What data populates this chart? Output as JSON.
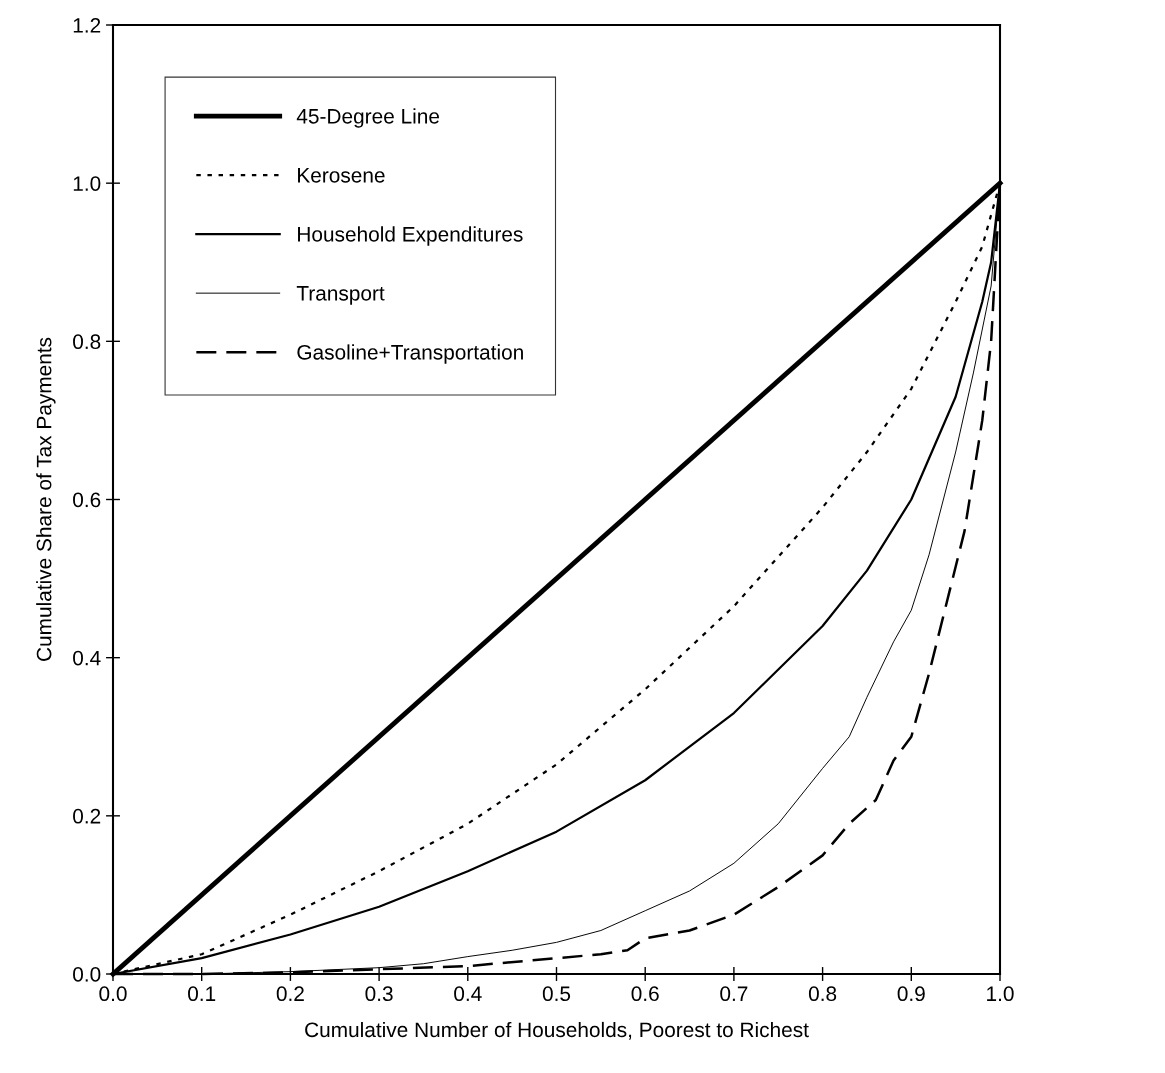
{
  "chart_data": {
    "type": "line",
    "xlabel": "Cumulative Number of Households, Poorest to Richest",
    "ylabel": "Cumulative Share of Tax Payments",
    "xlim": [
      0,
      1
    ],
    "ylim": [
      0,
      1.2
    ],
    "xticks": [
      {
        "value": 0,
        "label": "0.0"
      },
      0.1,
      0.2,
      0.3,
      0.4,
      0.5,
      0.6,
      0.7,
      0.8,
      0.9,
      {
        "value": 1,
        "label": "1.0"
      }
    ],
    "yticks": [
      {
        "value": 0,
        "label": "0.0"
      },
      0.2,
      0.4,
      0.6,
      0.8,
      {
        "value": 1,
        "label": "1.0"
      },
      1.2
    ],
    "grid": false,
    "legend": "top left",
    "series": [
      {
        "name": "45-Degree Line",
        "color": "#000000",
        "line_style": "solid",
        "x": [
          0,
          1
        ],
        "values": [
          0,
          1
        ]
      },
      {
        "name": "Kerosene",
        "color": "#000000",
        "line_style": "dotted",
        "x": [
          0,
          0.1,
          0.2,
          0.3,
          0.4,
          0.5,
          0.6,
          0.7,
          0.8,
          0.85,
          0.9,
          0.95,
          0.98,
          1
        ],
        "values": [
          0,
          0.025,
          0.075,
          0.13,
          0.19,
          0.265,
          0.36,
          0.465,
          0.59,
          0.66,
          0.74,
          0.85,
          0.92,
          1
        ]
      },
      {
        "name": "Household Expenditures",
        "color": "#000000",
        "line_style": "solid",
        "x": [
          0,
          0.1,
          0.2,
          0.3,
          0.4,
          0.5,
          0.6,
          0.7,
          0.8,
          0.85,
          0.9,
          0.95,
          0.98,
          0.99,
          1
        ],
        "values": [
          0,
          0.02,
          0.05,
          0.085,
          0.13,
          0.18,
          0.245,
          0.33,
          0.44,
          0.51,
          0.6,
          0.73,
          0.85,
          0.9,
          1
        ]
      },
      {
        "name": "Transport",
        "color": "#000000",
        "line_style": "solid",
        "x": [
          0,
          0.1,
          0.2,
          0.3,
          0.35,
          0.4,
          0.45,
          0.5,
          0.55,
          0.6,
          0.65,
          0.7,
          0.75,
          0.8,
          0.83,
          0.85,
          0.88,
          0.9,
          0.92,
          0.95,
          0.97,
          0.99,
          1
        ],
        "values": [
          0,
          0,
          0.003,
          0.008,
          0.013,
          0.022,
          0.03,
          0.04,
          0.055,
          0.08,
          0.105,
          0.14,
          0.19,
          0.26,
          0.3,
          0.35,
          0.42,
          0.46,
          0.53,
          0.66,
          0.76,
          0.87,
          1
        ]
      },
      {
        "name": "Gasoline+Transportation",
        "color": "#000000",
        "line_style": "dashed",
        "x": [
          0,
          0.1,
          0.2,
          0.3,
          0.4,
          0.5,
          0.55,
          0.58,
          0.6,
          0.65,
          0.7,
          0.75,
          0.8,
          0.83,
          0.86,
          0.88,
          0.9,
          0.92,
          0.94,
          0.96,
          0.98,
          0.99,
          1
        ],
        "values": [
          0,
          0,
          0.002,
          0.006,
          0.01,
          0.02,
          0.025,
          0.03,
          0.045,
          0.055,
          0.075,
          0.11,
          0.15,
          0.19,
          0.22,
          0.27,
          0.3,
          0.38,
          0.47,
          0.56,
          0.7,
          0.8,
          1
        ]
      }
    ]
  }
}
